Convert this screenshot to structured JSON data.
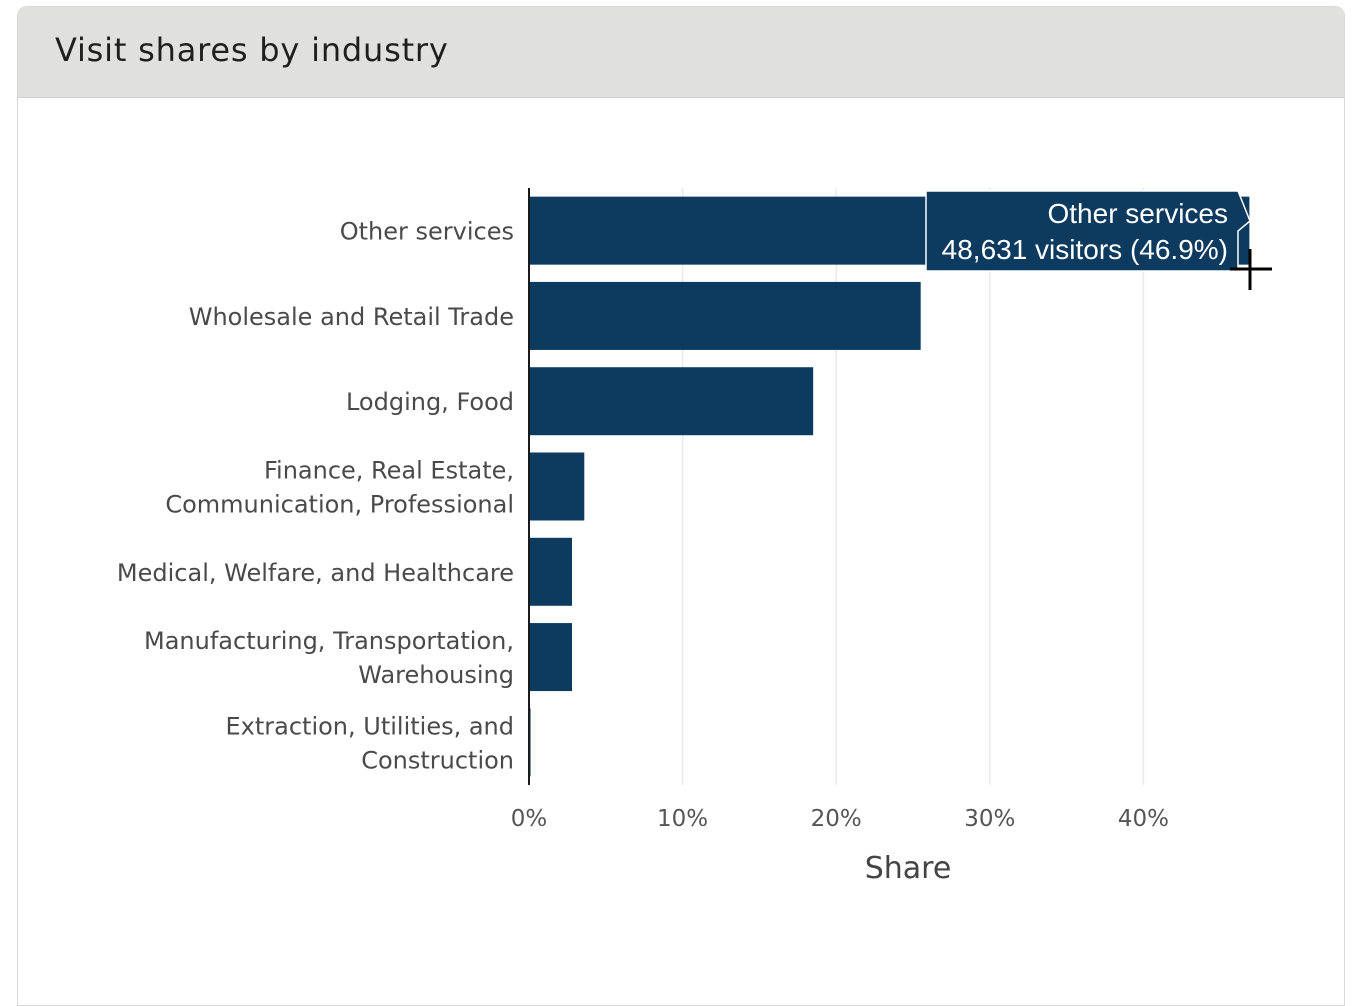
{
  "card": {
    "title": "Visit shares by industry"
  },
  "chart_data": {
    "type": "bar",
    "orientation": "horizontal",
    "categories": [
      "Other services",
      "Wholesale and Retail Trade",
      "Lodging, Food",
      "Finance, Real Estate, Communication, Professional",
      "Medical, Welfare, and Healthcare",
      "Manufacturing, Transportation, Warehousing",
      "Extraction, Utilities, and Construction"
    ],
    "category_lines": [
      [
        "Other services"
      ],
      [
        "Wholesale and Retail Trade"
      ],
      [
        "Lodging, Food"
      ],
      [
        "Finance, Real Estate,",
        "Communication, Professional"
      ],
      [
        "Medical, Welfare, and Healthcare"
      ],
      [
        "Manufacturing, Transportation,",
        "Warehousing"
      ],
      [
        "Extraction, Utilities, and",
        "Construction"
      ]
    ],
    "values": [
      0.469,
      0.255,
      0.185,
      0.036,
      0.028,
      0.028,
      0.001
    ],
    "x_ticks": [
      0,
      0.1,
      0.2,
      0.3,
      0.4
    ],
    "x_tick_labels": [
      "0%",
      "10%",
      "20%",
      "30%",
      "40%"
    ],
    "xlim": [
      0,
      0.47
    ],
    "xlabel": "Share",
    "ylabel": "",
    "grid": "vertical",
    "bar_color": "#0d3a5f",
    "tooltip": {
      "category_index": 0,
      "line1": "Other services",
      "line2": "48,631 visitors (46.9%)"
    }
  }
}
